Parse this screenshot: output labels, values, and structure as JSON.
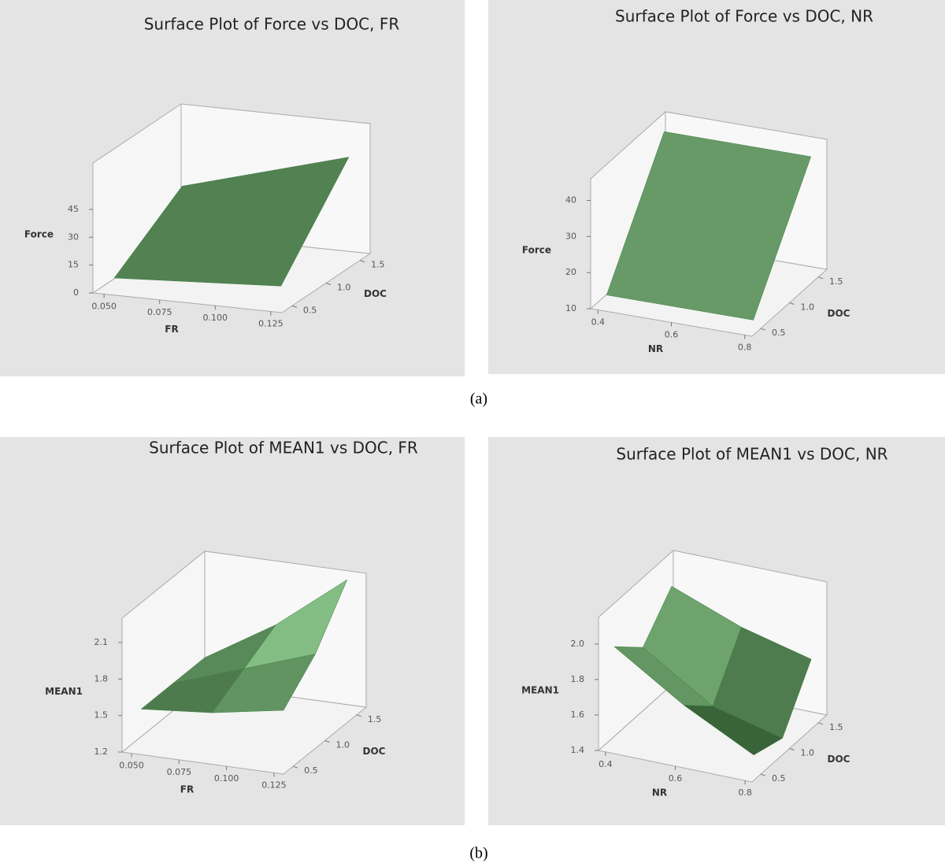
{
  "captions": [
    "(a)",
    "(b)"
  ],
  "chart_data": [
    {
      "type": "surface",
      "title": "Surface Plot of Force vs DOC, FR",
      "x_label": "FR",
      "y_label": "DOC",
      "z_label": "Force",
      "color": "#3f7f3f",
      "x": [
        0.05,
        0.125
      ],
      "y": [
        0.5,
        1.5
      ],
      "z": [
        [
          5,
          10
        ],
        [
          30,
          55
        ]
      ],
      "xlim": [
        0.045,
        0.13
      ],
      "ylim": [
        0.35,
        1.65
      ],
      "zlim": [
        0,
        70
      ],
      "xticks": [
        {
          "value": 0.05,
          "label": "0.050"
        },
        {
          "value": 0.075,
          "label": "0.075"
        },
        {
          "value": 0.1,
          "label": "0.100"
        },
        {
          "value": 0.125,
          "label": "0.125"
        }
      ],
      "yticks": [
        0.5,
        {
          "value": 1,
          "label": "1.0"
        },
        1.5
      ],
      "zticks": [
        0,
        15,
        30,
        45
      ]
    },
    {
      "type": "surface",
      "title": "Surface Plot of Force vs DOC, NR",
      "x_label": "NR",
      "y_label": "DOC",
      "z_label": "Force",
      "color": "#3f7f3f",
      "x": [
        0.4,
        0.8
      ],
      "y": [
        0.5,
        1.5
      ],
      "z": [
        [
          12,
          12
        ],
        [
          43,
          43
        ]
      ],
      "xlim": [
        0.38,
        0.82
      ],
      "ylim": [
        0.35,
        1.65
      ],
      "zlim": [
        10,
        46
      ],
      "xticks": [
        0.4,
        0.6,
        0.8
      ],
      "yticks": [
        0.5,
        {
          "value": 1,
          "label": "1.0"
        },
        1.5
      ],
      "zticks": [
        10,
        20,
        30,
        40
      ]
    },
    {
      "type": "surface",
      "title": "Surface Plot of MEAN1 vs DOC, FR",
      "x_label": "FR",
      "y_label": "DOC",
      "z_label": "MEAN1",
      "color": "#3f7f3f",
      "x": [
        0.05,
        0.0875,
        0.125
      ],
      "y": [
        0.5,
        1.0,
        1.5
      ],
      "z": [
        [
          1.5,
          1.55,
          1.65
        ],
        [
          1.5,
          1.7,
          1.9
        ],
        [
          1.5,
          1.85,
          2.3
        ]
      ],
      "xlim": [
        0.045,
        0.13
      ],
      "ylim": [
        0.35,
        1.65
      ],
      "zlim": [
        1.2,
        2.3
      ],
      "xticks": [
        {
          "value": 0.05,
          "label": "0.050"
        },
        {
          "value": 0.075,
          "label": "0.075"
        },
        {
          "value": 0.1,
          "label": "0.100"
        },
        {
          "value": 0.125,
          "label": "0.125"
        }
      ],
      "yticks": [
        0.5,
        {
          "value": 1,
          "label": "1.0"
        },
        1.5
      ],
      "zticks": [
        1.2,
        1.5,
        1.8,
        2.1
      ]
    },
    {
      "type": "surface",
      "title": "Surface Plot of MEAN1 vs DOC, NR",
      "x_label": "NR",
      "y_label": "DOC",
      "z_label": "MEAN1",
      "color": "#3f7f3f",
      "x": [
        0.4,
        0.6,
        0.8
      ],
      "y": [
        0.5,
        1.0,
        1.5
      ],
      "z": [
        [
          1.95,
          1.7,
          1.5
        ],
        [
          1.8,
          1.55,
          1.45
        ],
        [
          2.0,
          1.85,
          1.75
        ]
      ],
      "xlim": [
        0.38,
        0.82
      ],
      "ylim": [
        0.35,
        1.65
      ],
      "zlim": [
        1.4,
        2.15
      ],
      "xticks": [
        0.4,
        0.6,
        0.8
      ],
      "yticks": [
        0.5,
        {
          "value": 1,
          "label": "1.0"
        },
        1.5
      ],
      "zticks": [
        1.4,
        1.6,
        1.8,
        {
          "value": 2,
          "label": "2.0"
        }
      ]
    }
  ]
}
